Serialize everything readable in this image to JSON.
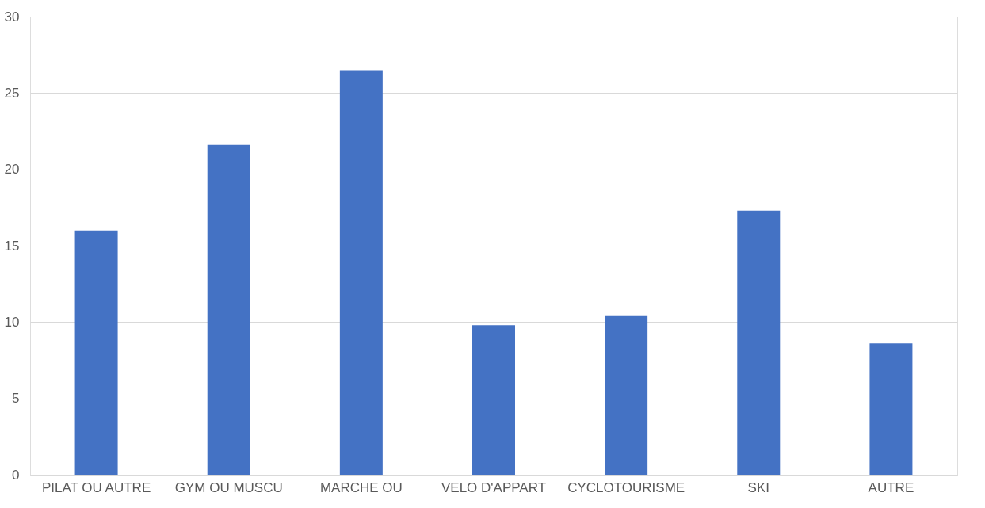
{
  "chart_data": {
    "type": "bar",
    "categories": [
      "PILAT OU AUTRE",
      "GYM OU MUSCU",
      "MARCHE OU",
      "VELO D'APPART",
      "CYCLOTOURISME",
      "SKI",
      "AUTRE"
    ],
    "values": [
      16.0,
      21.6,
      26.5,
      9.8,
      10.4,
      17.3,
      8.6
    ],
    "color": "#4472c4",
    "ylim": [
      0,
      30
    ],
    "yticks": [
      0,
      5,
      10,
      15,
      20,
      25,
      30
    ],
    "grid": "y"
  }
}
